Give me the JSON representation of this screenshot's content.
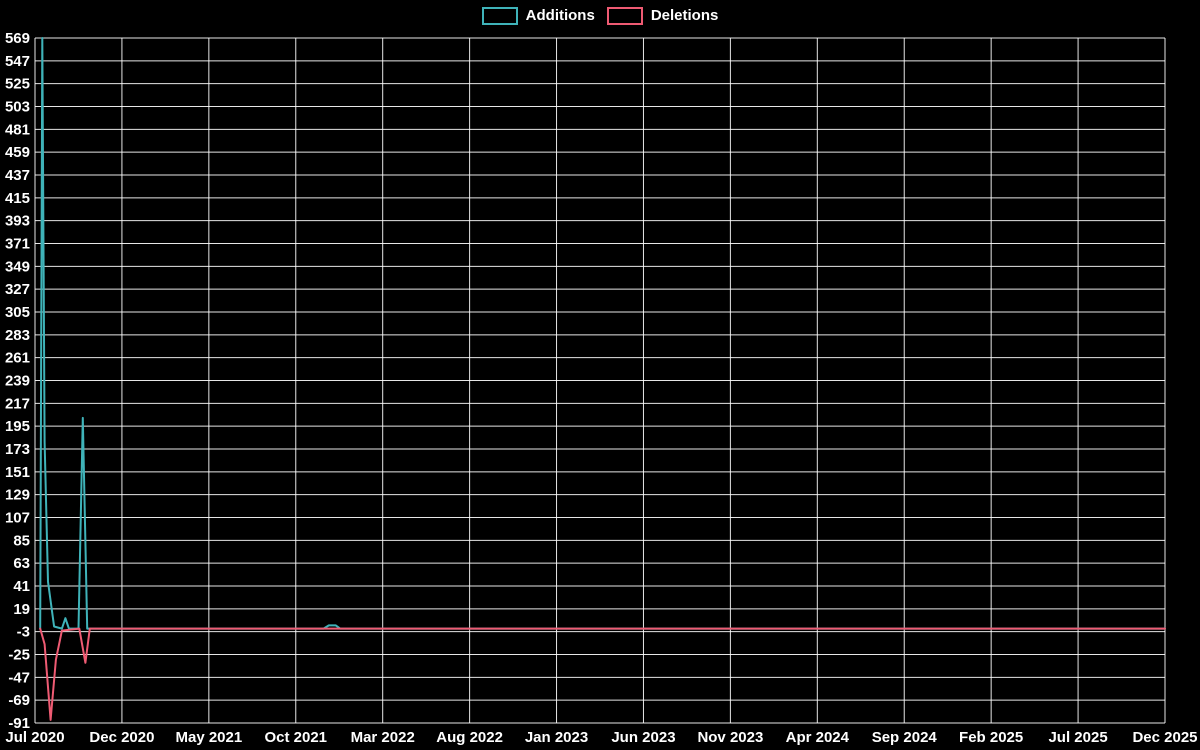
{
  "chart_data": {
    "type": "line",
    "title": "",
    "legend_position": "top-center",
    "background_color": "#000000",
    "grid": true,
    "grid_color": "#ffffff",
    "text_color": "#ffffff",
    "x_axis": {
      "unit": "months since Jul 2020",
      "range_months": [
        0,
        65
      ],
      "tick_positions_months": [
        0,
        5,
        10,
        15,
        20,
        25,
        30,
        35,
        40,
        45,
        50,
        55,
        60,
        65
      ],
      "tick_labels": [
        "Jul 2020",
        "Dec 2020",
        "May 2021",
        "Oct 2021",
        "Mar 2022",
        "Aug 2022",
        "Jan 2023",
        "Jun 2023",
        "Nov 2023",
        "Apr 2024",
        "Sep 2024",
        "Feb 2025",
        "Jul 2025",
        "Dec 2025"
      ]
    },
    "y_axis": {
      "range": [
        -91,
        569
      ],
      "tick_step": 22,
      "tick_labels": [
        569,
        547,
        525,
        503,
        481,
        459,
        437,
        415,
        393,
        371,
        349,
        327,
        305,
        283,
        261,
        239,
        217,
        195,
        173,
        151,
        129,
        107,
        85,
        63,
        41,
        19,
        -3,
        -25,
        -47,
        -69,
        -91
      ]
    },
    "series": [
      {
        "name": "Additions",
        "color": "#3fb3b9",
        "points": [
          [
            0.3,
            0
          ],
          [
            0.42,
            569
          ],
          [
            0.55,
            180
          ],
          [
            0.75,
            45
          ],
          [
            1.1,
            2
          ],
          [
            1.55,
            0
          ],
          [
            1.75,
            10
          ],
          [
            1.95,
            0
          ],
          [
            2.5,
            0
          ],
          [
            2.75,
            203
          ],
          [
            3.0,
            0
          ],
          [
            16.6,
            0
          ],
          [
            16.9,
            3
          ],
          [
            17.3,
            3
          ],
          [
            17.55,
            0
          ],
          [
            65,
            0
          ]
        ]
      },
      {
        "name": "Deletions",
        "color": "#ef5b73",
        "points": [
          [
            0.3,
            0
          ],
          [
            0.55,
            -15
          ],
          [
            0.9,
            -88
          ],
          [
            1.2,
            -30
          ],
          [
            1.55,
            -2
          ],
          [
            2.55,
            0
          ],
          [
            2.9,
            -33
          ],
          [
            3.15,
            0
          ],
          [
            65,
            0
          ]
        ]
      }
    ]
  }
}
